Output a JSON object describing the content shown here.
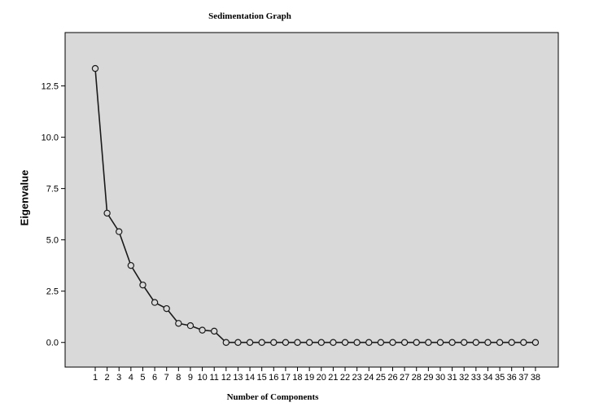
{
  "chart_data": {
    "type": "line",
    "title": "Sedimentation Graph",
    "xlabel": "Number of Components",
    "ylabel": "Eigenvalue",
    "x": [
      1,
      2,
      3,
      4,
      5,
      6,
      7,
      8,
      9,
      10,
      11,
      12,
      13,
      14,
      15,
      16,
      17,
      18,
      19,
      20,
      21,
      22,
      23,
      24,
      25,
      26,
      27,
      28,
      29,
      30,
      31,
      32,
      33,
      34,
      35,
      36,
      37,
      38
    ],
    "y": [
      13.35,
      6.3,
      5.4,
      3.75,
      2.8,
      1.95,
      1.65,
      0.93,
      0.82,
      0.6,
      0.55,
      0.0,
      0.0,
      0.0,
      0.0,
      0.0,
      0.0,
      0.0,
      0.0,
      0.0,
      0.0,
      0.0,
      0.0,
      0.0,
      0.0,
      0.0,
      0.0,
      0.0,
      0.0,
      0.0,
      0.0,
      0.0,
      0.0,
      0.0,
      0.0,
      0.0,
      0.0,
      0.0
    ],
    "y_ticks": [
      "0.0",
      "2.5",
      "5.0",
      "7.5",
      "10.0",
      "12.5"
    ],
    "y_tick_values": [
      0,
      2.5,
      5.0,
      7.5,
      10.0,
      12.5
    ],
    "ylim": [
      -1.2,
      15.1
    ],
    "xlim": [
      0,
      40
    ],
    "grid": false,
    "legend": "none",
    "colors": {
      "plot_background": "#d9d9d9",
      "line": "#1a1a1a",
      "marker_fill": "#d9d9d9"
    }
  }
}
